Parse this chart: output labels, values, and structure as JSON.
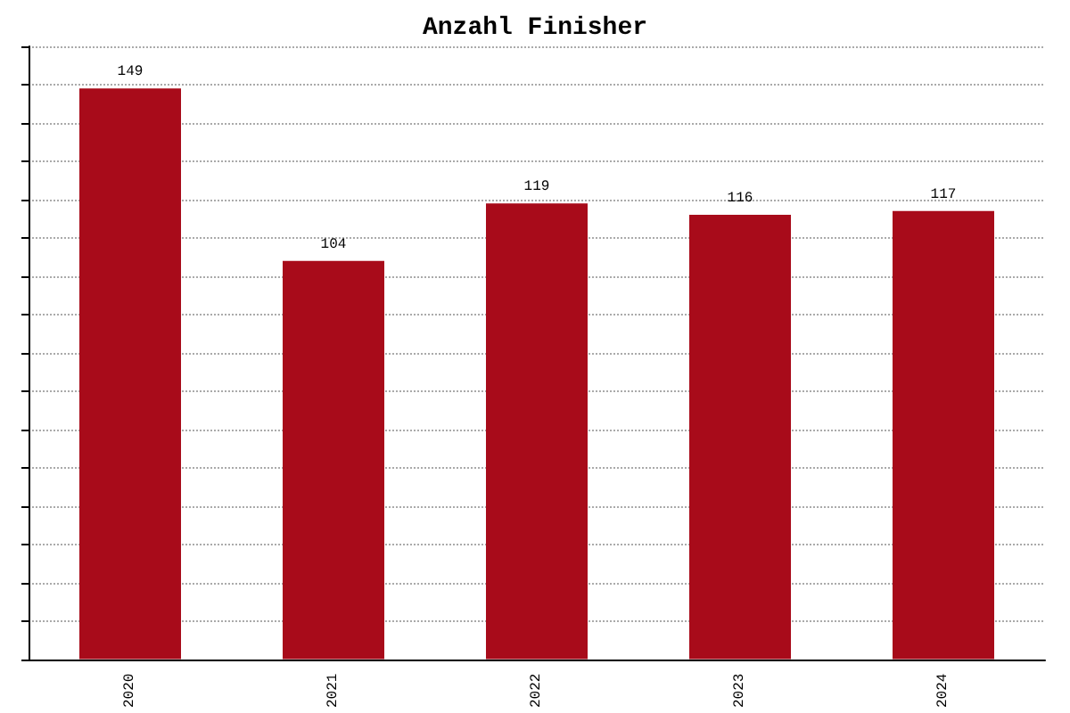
{
  "chart_data": {
    "type": "bar",
    "title": "Anzahl Finisher",
    "categories": [
      "2020",
      "2021",
      "2022",
      "2023",
      "2024"
    ],
    "values": [
      149,
      104,
      119,
      116,
      117
    ],
    "color": "#a80b1a",
    "data_labels": true,
    "ylim": [
      0,
      160
    ],
    "yticks": [
      {
        "value": 0,
        "label": null
      },
      {
        "value": 10,
        "label": null
      },
      {
        "value": 20,
        "label": null
      },
      {
        "value": 30,
        "label": null
      },
      {
        "value": 40,
        "label": null
      },
      {
        "value": 50,
        "label": null
      },
      {
        "value": 60,
        "label": null
      },
      {
        "value": 70,
        "label": null
      },
      {
        "value": 80,
        "label": null
      },
      {
        "value": 90,
        "label": null
      },
      {
        "value": 100,
        "label": null
      },
      {
        "value": 110,
        "label": null
      },
      {
        "value": 120,
        "label": null
      },
      {
        "value": 130,
        "label": null
      },
      {
        "value": 140,
        "label": null
      },
      {
        "value": 150,
        "label": null
      },
      {
        "value": 160,
        "label": null
      }
    ],
    "grid": "y",
    "tick_labels": "x"
  }
}
